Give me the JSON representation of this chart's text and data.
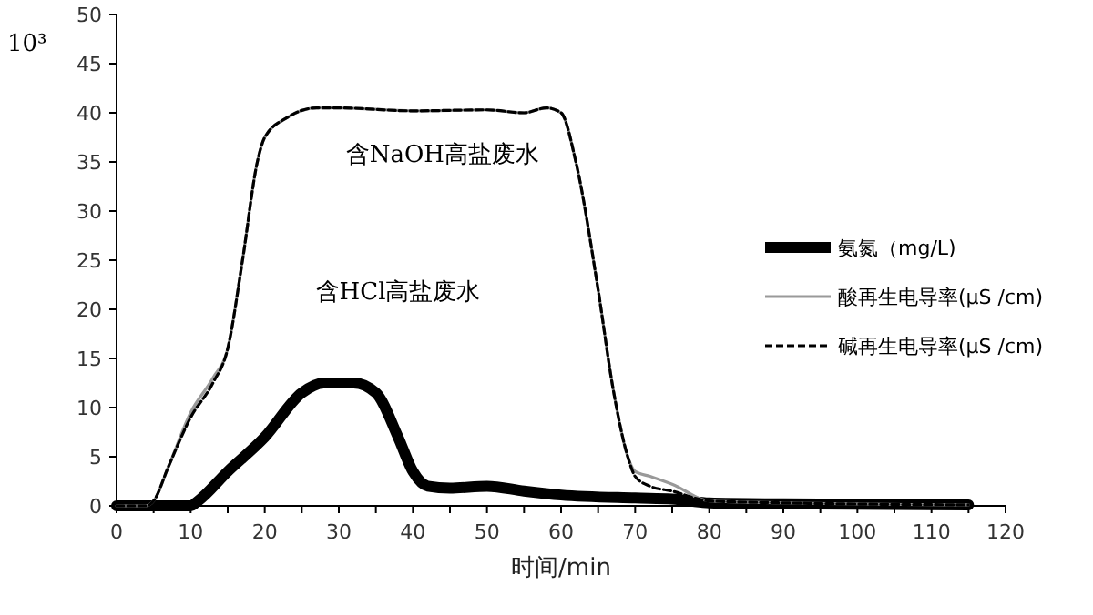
{
  "chart_data": {
    "type": "line",
    "xlabel": "时间/min",
    "ylabel": "10³",
    "xlim": [
      0,
      120
    ],
    "ylim": [
      0,
      50
    ],
    "xticks": [
      0,
      {
        "value": 5,
        "label": null
      },
      10,
      {
        "value": 15,
        "label": null
      },
      20,
      {
        "value": 25,
        "label": null
      },
      30,
      {
        "value": 35,
        "label": null
      },
      40,
      {
        "value": 45,
        "label": null
      },
      50,
      {
        "value": 55,
        "label": null
      },
      60,
      {
        "value": 65,
        "label": null
      },
      70,
      {
        "value": 75,
        "label": null
      },
      80,
      {
        "value": 85,
        "label": null
      },
      90,
      {
        "value": 95,
        "label": null
      },
      100,
      {
        "value": 105,
        "label": null
      },
      110,
      {
        "value": 115,
        "label": null
      },
      120
    ],
    "yticks": [
      0,
      5,
      10,
      15,
      20,
      25,
      30,
      35,
      40,
      45,
      50
    ],
    "grid": false,
    "legend": "right",
    "annotations": [
      "含NaOH高盐废水",
      "含HCl高盐废水"
    ],
    "series": [
      {
        "name": "氨氮（mg/L)",
        "color": "#000000",
        "line_style": "solid",
        "x": [
          0,
          10,
          11,
          15,
          20,
          25,
          28,
          32,
          35,
          38,
          40,
          42,
          45,
          50,
          55,
          60,
          70,
          75,
          80,
          90,
          115
        ],
        "values": [
          0,
          0,
          0.5,
          3.5,
          7,
          11.5,
          12.5,
          12.5,
          11.5,
          7,
          3.5,
          2,
          1.8,
          2,
          1.5,
          1.1,
          0.8,
          0.7,
          0.3,
          0.2,
          0.1
        ]
      },
      {
        "name": "酸再生电导率(μS /cm)",
        "color": "#999999",
        "line_style": "solid",
        "x": [
          0,
          4,
          5,
          7,
          10,
          13,
          15,
          17,
          19,
          20,
          23,
          27,
          30,
          40,
          50,
          55,
          58,
          60,
          62,
          65,
          67,
          69,
          70,
          72,
          75,
          80,
          90,
          115
        ],
        "values": [
          0,
          0,
          0.5,
          4,
          9.5,
          13,
          16,
          25,
          35,
          37.5,
          39.5,
          40.5,
          40.5,
          40.2,
          40.3,
          40,
          40.5,
          40,
          35,
          22,
          12,
          5,
          3.5,
          3,
          2.2,
          0.5,
          0.3,
          0.1
        ]
      },
      {
        "name": "碱再生电导率(μS /cm)",
        "color": "#000000",
        "line_style": "dashed",
        "x": [
          0,
          4,
          5,
          7,
          10,
          13,
          15,
          17,
          19,
          20,
          23,
          27,
          30,
          40,
          50,
          55,
          58,
          60,
          62,
          65,
          67,
          69,
          70,
          72,
          75,
          80,
          90,
          115
        ],
        "values": [
          0,
          0,
          0.5,
          4,
          9,
          12.5,
          16,
          25,
          35,
          37.5,
          39.5,
          40.5,
          40.5,
          40.2,
          40.3,
          40,
          40.5,
          40,
          35,
          22,
          12,
          5,
          3,
          2,
          1.5,
          0.5,
          0.3,
          0.1
        ]
      }
    ]
  }
}
